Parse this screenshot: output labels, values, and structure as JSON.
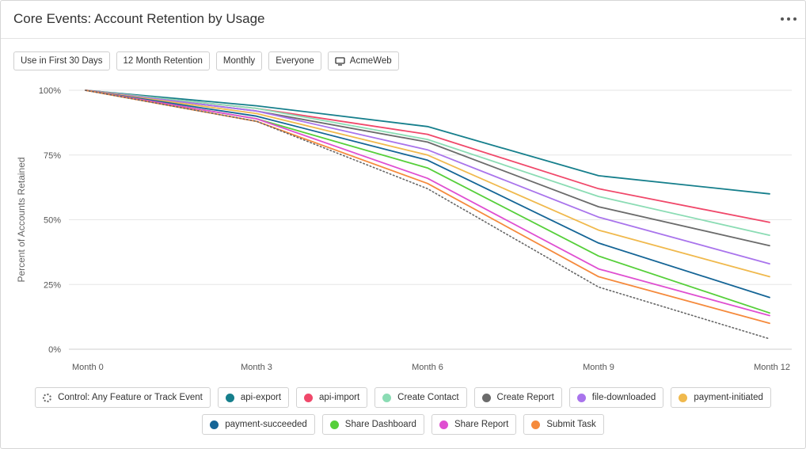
{
  "header": {
    "title": "Core Events: Account Retention by Usage",
    "more_icon": "more-horizontal-icon"
  },
  "filters": [
    {
      "label": "Use in First 30 Days"
    },
    {
      "label": "12 Month Retention"
    },
    {
      "label": "Monthly"
    },
    {
      "label": "Everyone"
    },
    {
      "label": "AcmeWeb",
      "icon": "monitor-icon"
    }
  ],
  "chart_data": {
    "type": "line",
    "title": "",
    "xlabel": "",
    "ylabel": "Percent of Accounts Retained",
    "categories": [
      "Month 0",
      "Month 3",
      "Month 6",
      "Month 9",
      "Month 12"
    ],
    "y_ticks": [
      "0%",
      "25%",
      "50%",
      "75%",
      "100%"
    ],
    "ylim": [
      0,
      100
    ],
    "grid": true,
    "legend_position": "bottom",
    "series": [
      {
        "name": "Control: Any Feature or Track Event",
        "color": "#666666",
        "dashed": true,
        "values": [
          100,
          88,
          62,
          24,
          4
        ]
      },
      {
        "name": "api-export",
        "color": "#167f8c",
        "values": [
          100,
          94,
          86,
          67,
          60
        ]
      },
      {
        "name": "api-import",
        "color": "#f0486a",
        "values": [
          100,
          93,
          83,
          62,
          49
        ]
      },
      {
        "name": "Create Contact",
        "color": "#8bdcb4",
        "values": [
          100,
          93,
          81,
          59,
          44
        ]
      },
      {
        "name": "Create Report",
        "color": "#6b6b6b",
        "values": [
          100,
          92,
          80,
          55,
          40
        ]
      },
      {
        "name": "file-downloaded",
        "color": "#a974ec",
        "values": [
          100,
          92,
          77,
          51,
          33
        ]
      },
      {
        "name": "payment-initiated",
        "color": "#f0b94d",
        "values": [
          100,
          91,
          75,
          46,
          28
        ]
      },
      {
        "name": "payment-succeeded",
        "color": "#156596",
        "values": [
          100,
          90,
          73,
          41,
          20
        ]
      },
      {
        "name": "Share Dashboard",
        "color": "#56cf3a",
        "values": [
          100,
          89,
          70,
          36,
          14
        ]
      },
      {
        "name": "Share Report",
        "color": "#df4fd1",
        "values": [
          100,
          89,
          66,
          31,
          13
        ]
      },
      {
        "name": "Submit Task",
        "color": "#f58a3c",
        "values": [
          100,
          88,
          64,
          28,
          10
        ]
      }
    ]
  }
}
